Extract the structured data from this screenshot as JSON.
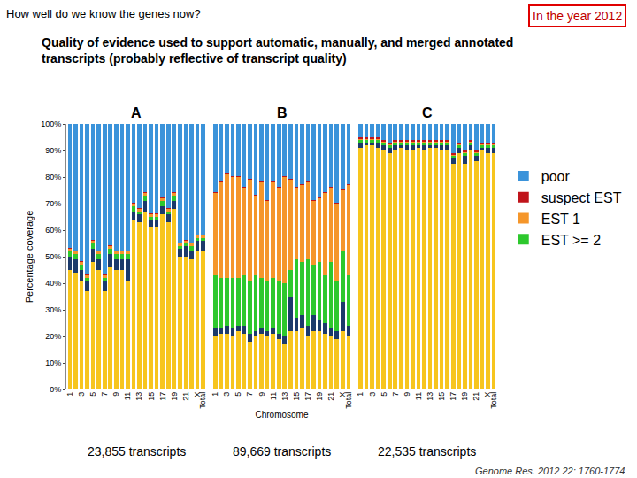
{
  "chart_data": {
    "type": "bar",
    "stacked": true,
    "title": "How well do we know the genes now?",
    "subtitle": "Quality of evidence used to support automatic, manually, and merged annotated transcripts (probably reflective of transcript quality)",
    "annotations": [
      "In the year 2012",
      "Genome Res. 2012 22: 1760-1774"
    ],
    "x_label": "Chromosome",
    "y_label": "Percentage coverage",
    "categories": [
      "1",
      null,
      "3",
      null,
      "5",
      null,
      "7",
      null,
      "9",
      null,
      "11",
      null,
      "13",
      null,
      "15",
      null,
      "17",
      null,
      "19",
      null,
      "21",
      null,
      "X",
      "Total"
    ],
    "ylim": [
      0,
      100
    ],
    "yticks": [
      {
        "value": 0,
        "label": "0%"
      },
      {
        "value": 10,
        "label": "10%"
      },
      {
        "value": 20,
        "label": "20%"
      },
      {
        "value": 30,
        "label": "30%"
      },
      {
        "value": 40,
        "label": "40%"
      },
      {
        "value": 50,
        "label": "50%"
      },
      {
        "value": 60,
        "label": "60%"
      },
      {
        "value": 70,
        "label": "70%"
      },
      {
        "value": 80,
        "label": "80%"
      },
      {
        "value": 90,
        "label": "90%"
      },
      {
        "value": 100,
        "label": "100%"
      }
    ],
    "grid": false,
    "legend": "right",
    "panels": [
      {
        "label": "A",
        "caption": "23,855 transcripts",
        "series": [
          {
            "color": "#F7C51E",
            "values": [
              45,
              44,
              41,
              37,
              48,
              45,
              37,
              46,
              45,
              45,
              41,
              64,
              63,
              67,
              61,
              61,
              66,
              63,
              68,
              50,
              50,
              49,
              52,
              52
            ]
          },
          {
            "color": "#1B3A6B",
            "values": [
              5,
              5,
              4,
              4,
              5,
              4,
              4,
              5,
              4,
              4,
              8,
              3,
              3,
              4,
              3,
              3,
              3,
              3,
              3,
              3,
              4,
              3,
              4,
              4
            ]
          },
          {
            "name": "EST >= 2",
            "color": "#2DC82D",
            "values": [
              2,
              2,
              2,
              1,
              2,
              2,
              1,
              2,
              2,
              2,
              2,
              2,
              1,
              2,
              1,
              1,
              2,
              1,
              2,
              1,
              1,
              2,
              1,
              1
            ]
          },
          {
            "name": "EST 1",
            "color": "#F5962A",
            "values": [
              1,
              1,
              1,
              1,
              1,
              1,
              1,
              1,
              1,
              1,
              1,
              1,
              1,
              1,
              1,
              1,
              1,
              1,
              1,
              1,
              1,
              1,
              1,
              1
            ]
          },
          {
            "name": "suspect EST",
            "color": "#C0141B",
            "values": [
              0.5,
              0.5,
              0.5,
              0.5,
              0.5,
              0.5,
              0.5,
              0.5,
              0.5,
              0.5,
              0.5,
              0.5,
              0.5,
              0.5,
              0.5,
              0.5,
              0.5,
              0.5,
              0.5,
              0.5,
              0.5,
              0.5,
              0.5,
              0.5
            ]
          },
          {
            "name": "poor",
            "color": "#3B93DA",
            "values": [
              46.5,
              47.5,
              51.5,
              56.5,
              43.5,
              47.5,
              56.5,
              45.5,
              47.5,
              47.5,
              47.5,
              29.5,
              31.5,
              25.5,
              33.5,
              33.5,
              27.5,
              31.5,
              25.5,
              44.5,
              43.5,
              44.5,
              41.5,
              41.5
            ]
          }
        ]
      },
      {
        "label": "B",
        "caption": "89,669 transcripts",
        "series": [
          {
            "color": "#F7C51E",
            "values": [
              20,
              21,
              21,
              20,
              22,
              21,
              18,
              20,
              21,
              20,
              21,
              19,
              17,
              22,
              22,
              23,
              20,
              22,
              22,
              21,
              20,
              19,
              22,
              20
            ]
          },
          {
            "color": "#1B3A6B",
            "values": [
              3,
              2,
              3,
              3,
              2,
              3,
              3,
              2,
              2,
              2,
              2,
              2,
              3,
              13,
              5,
              5,
              4,
              6,
              4,
              4,
              3,
              3,
              11,
              4
            ]
          },
          {
            "name": "EST >= 2",
            "color": "#2DC82D",
            "values": [
              20,
              19,
              18,
              19,
              18,
              19,
              20,
              21,
              19,
              19,
              19,
              20,
              20,
              10,
              22,
              20,
              25,
              19,
              22,
              18,
              25,
              19,
              19,
              19
            ]
          },
          {
            "name": "EST 1",
            "color": "#F5962A",
            "values": [
              31,
              36,
              39,
              38,
              38,
              33,
              38,
              30,
              36,
              30,
              36,
              35,
              40,
              34,
              27,
              29,
              29,
              24,
              24,
              31,
              28,
              29,
              23,
              34
            ]
          },
          {
            "name": "suspect EST",
            "color": "#C0141B",
            "values": [
              0.5,
              0.5,
              0.5,
              0.5,
              0.5,
              0.5,
              0.5,
              0.5,
              0.5,
              0.5,
              0.5,
              0.5,
              0.5,
              0.5,
              0.5,
              0.5,
              0.5,
              0.5,
              0.5,
              0.5,
              0.5,
              0.5,
              0.5,
              0.5
            ]
          },
          {
            "name": "poor",
            "color": "#3B93DA",
            "values": [
              25.5,
              21.5,
              18.5,
              19.5,
              19.5,
              23.5,
              20.5,
              26.5,
              21.5,
              28.5,
              21.5,
              23.5,
              19.5,
              20.5,
              23.5,
              22.5,
              21.5,
              28.5,
              27.5,
              25.5,
              23.5,
              29.5,
              24.5,
              22.5
            ]
          }
        ]
      },
      {
        "label": "C",
        "caption": "22,535 transcripts",
        "series": [
          {
            "color": "#F7C51E",
            "values": [
              91,
              92,
              92,
              91,
              90,
              89,
              90,
              91,
              90,
              90,
              91,
              90,
              91,
              91,
              90,
              90,
              85,
              89,
              85,
              90,
              86,
              90,
              89,
              89
            ]
          },
          {
            "color": "#1B3A6B",
            "values": [
              2,
              1,
              1,
              2,
              2,
              2,
              2,
              1,
              2,
              2,
              1,
              2,
              1,
              1,
              2,
              2,
              2,
              2,
              3,
              2,
              2,
              1,
              2,
              2
            ]
          },
          {
            "name": "EST >= 2",
            "color": "#2DC82D",
            "values": [
              1,
              1,
              1,
              1,
              1,
              1,
              1,
              1,
              1,
              1,
              1,
              1,
              1,
              1,
              1,
              1,
              1,
              1,
              1,
              1,
              1,
              1,
              1,
              1
            ]
          },
          {
            "name": "EST 1",
            "color": "#F5962A",
            "values": [
              0.5,
              0.5,
              0.5,
              0.5,
              0.5,
              0.5,
              0.5,
              0.5,
              0.5,
              0.5,
              0.5,
              0.5,
              0.5,
              0.5,
              0.5,
              0.5,
              0.5,
              0.5,
              0.5,
              0.5,
              0.5,
              0.5,
              0.5,
              0.5
            ]
          },
          {
            "name": "suspect EST",
            "color": "#C0141B",
            "values": [
              0.5,
              0.5,
              0.5,
              0.5,
              0.5,
              0.5,
              0.5,
              0.5,
              0.5,
              0.5,
              0.5,
              0.5,
              0.5,
              0.5,
              0.5,
              0.5,
              0.5,
              0.5,
              0.5,
              0.5,
              0.5,
              0.5,
              0.5,
              0.5
            ]
          },
          {
            "name": "poor",
            "color": "#3B93DA",
            "values": [
              5,
              5,
              5,
              5,
              6,
              7,
              6,
              6,
              6,
              6,
              6,
              6,
              6,
              6,
              6,
              6,
              11,
              7,
              10,
              6,
              10,
              7,
              7,
              7
            ]
          }
        ]
      }
    ]
  }
}
